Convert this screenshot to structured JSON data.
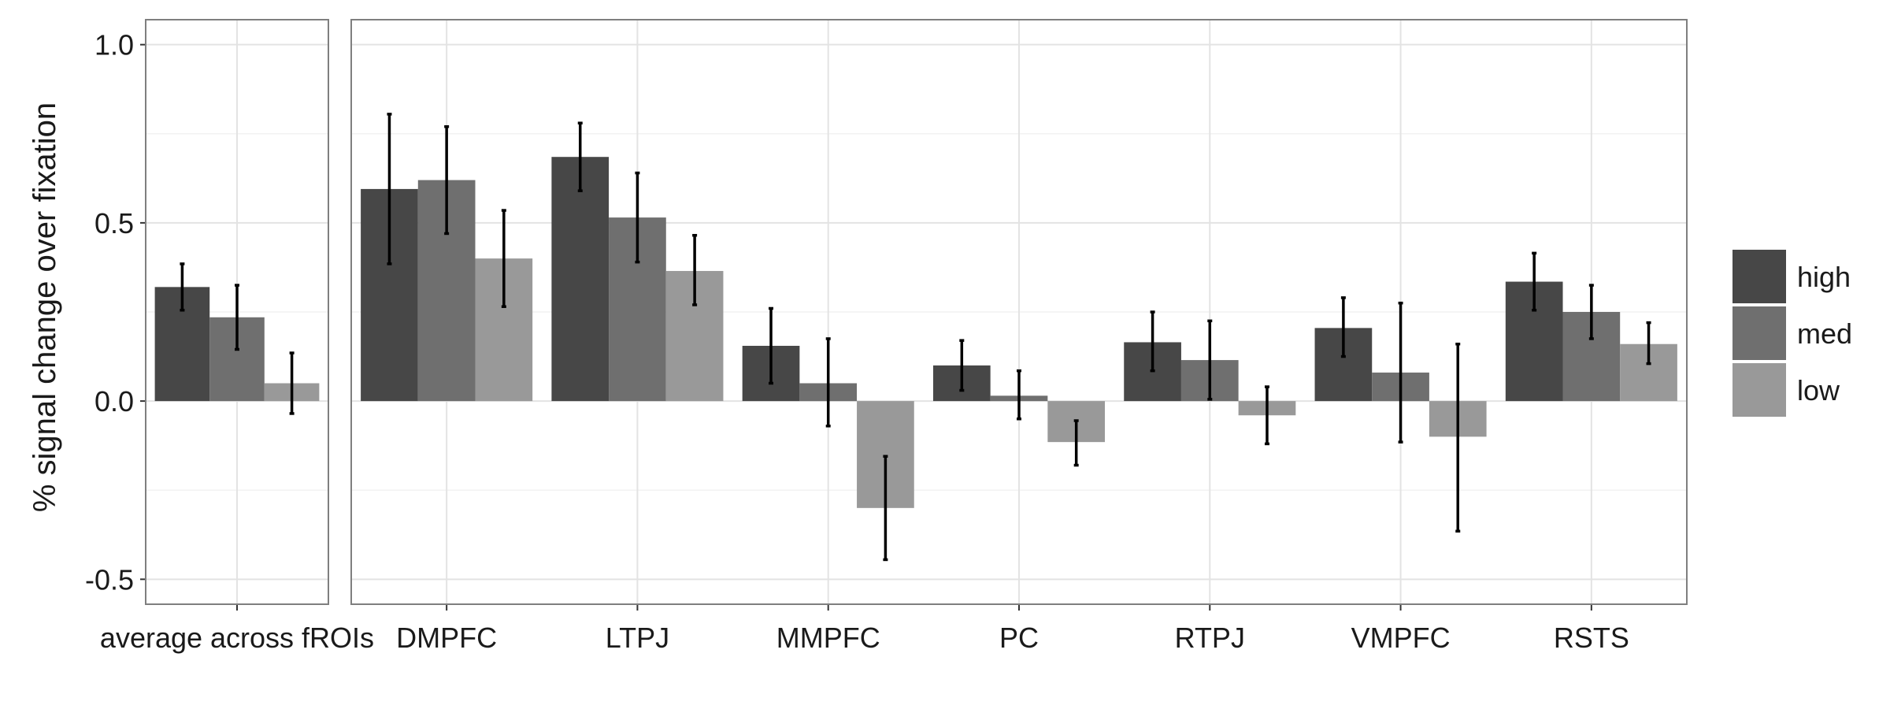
{
  "chart_data": {
    "type": "bar",
    "ylabel": "% signal change over fixation",
    "ylim": [
      -0.57,
      1.07
    ],
    "yticks": [
      -0.5,
      0.0,
      0.5,
      1.0
    ],
    "ytick_labels": [
      "-0.5",
      "0.0",
      "0.5",
      "1.0"
    ],
    "grid": true,
    "legend_position": "right",
    "series": [
      {
        "name": "high",
        "color": "#474747"
      },
      {
        "name": "med",
        "color": "#6f6f6f"
      },
      {
        "name": "low",
        "color": "#999999"
      }
    ],
    "panels": [
      {
        "categories": [
          "average across fROIs"
        ],
        "values": [
          [
            0.32,
            0.235,
            0.05
          ]
        ],
        "errors": [
          [
            [
              0.255,
              0.385
            ],
            [
              0.145,
              0.325
            ],
            [
              -0.035,
              0.135
            ]
          ]
        ]
      },
      {
        "categories": [
          "DMPFC",
          "LTPJ",
          "MMPFC",
          "PC",
          "RTPJ",
          "VMPFC",
          "RSTS"
        ],
        "values": [
          [
            0.595,
            0.62,
            0.4
          ],
          [
            0.685,
            0.515,
            0.365
          ],
          [
            0.155,
            0.05,
            -0.3
          ],
          [
            0.1,
            0.015,
            -0.115
          ],
          [
            0.165,
            0.115,
            -0.04
          ],
          [
            0.205,
            0.08,
            -0.1
          ],
          [
            0.335,
            0.25,
            0.16
          ]
        ],
        "errors": [
          [
            [
              0.385,
              0.805
            ],
            [
              0.47,
              0.77
            ],
            [
              0.265,
              0.535
            ]
          ],
          [
            [
              0.59,
              0.78
            ],
            [
              0.39,
              0.64
            ],
            [
              0.27,
              0.465
            ]
          ],
          [
            [
              0.05,
              0.26
            ],
            [
              -0.07,
              0.175
            ],
            [
              -0.445,
              -0.155
            ]
          ],
          [
            [
              0.03,
              0.17
            ],
            [
              -0.05,
              0.085
            ],
            [
              -0.18,
              -0.055
            ]
          ],
          [
            [
              0.085,
              0.25
            ],
            [
              0.005,
              0.225
            ],
            [
              -0.12,
              0.04
            ]
          ],
          [
            [
              0.125,
              0.29
            ],
            [
              -0.115,
              0.275
            ],
            [
              -0.365,
              0.16
            ]
          ],
          [
            [
              0.255,
              0.415
            ],
            [
              0.175,
              0.325
            ],
            [
              0.105,
              0.22
            ]
          ]
        ]
      }
    ]
  }
}
